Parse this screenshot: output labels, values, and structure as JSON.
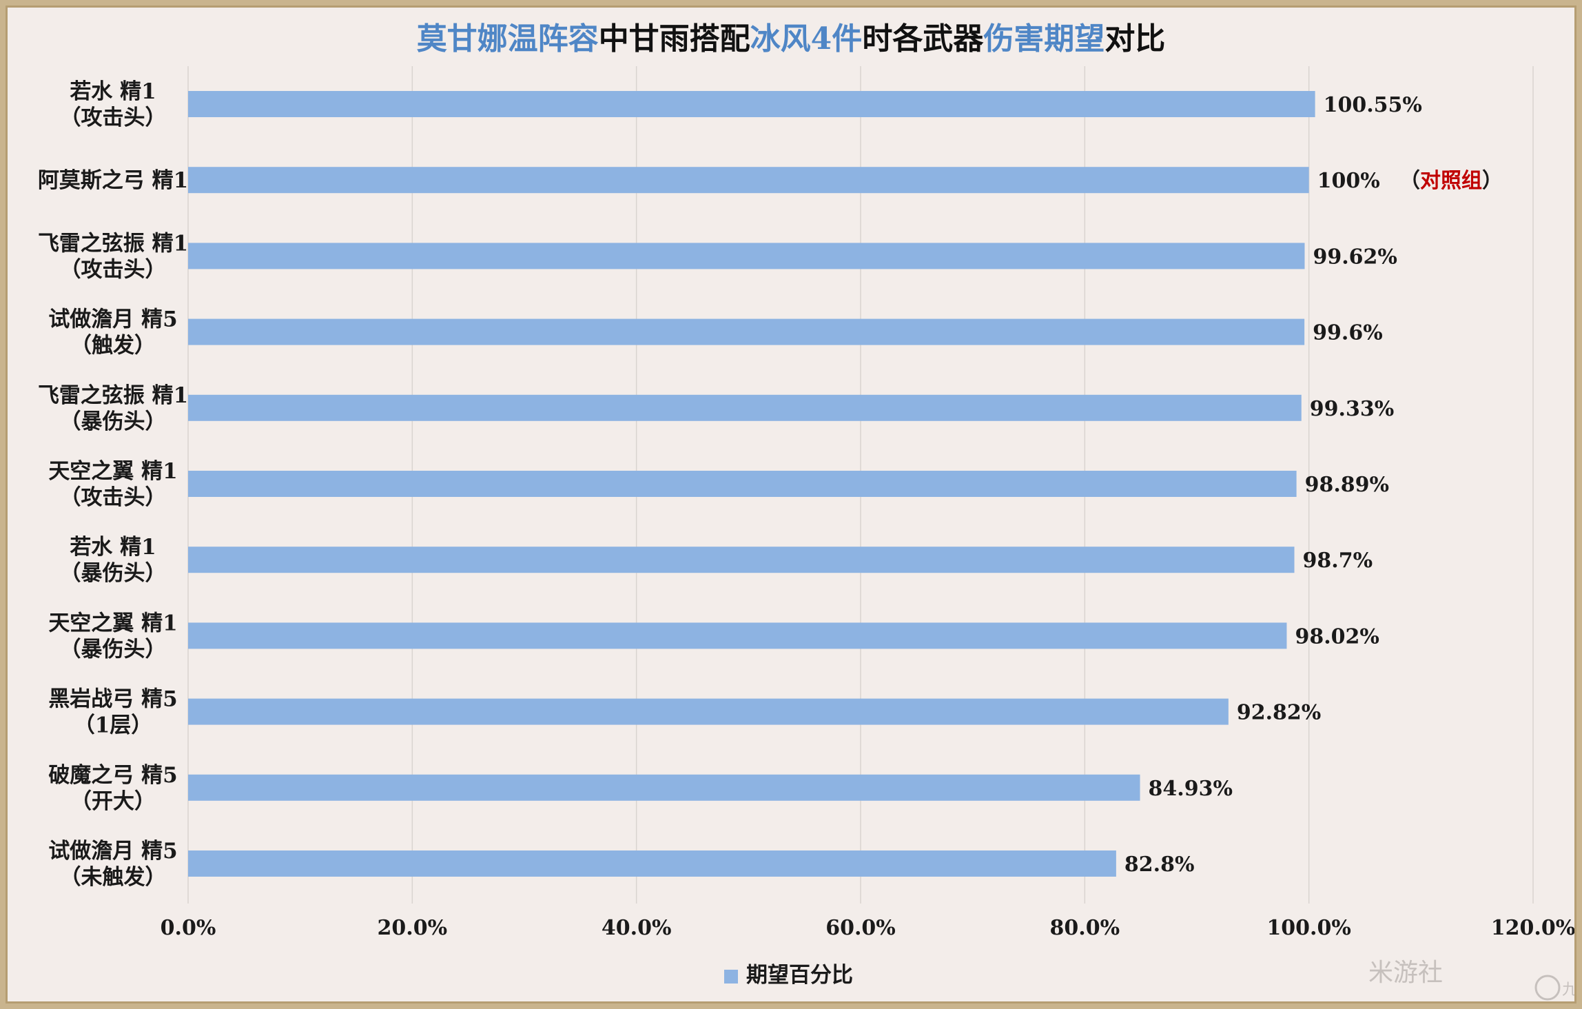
{
  "colors": {
    "bar": "#8db3e2",
    "title_highlight": "#4f86c6",
    "title_dark": "#111111",
    "control_group": "#c00000",
    "grid": "#d9d4d0",
    "frame": "#c9b48e"
  },
  "title_segments": [
    {
      "text": "莫甘娜温阵容",
      "highlight": true
    },
    {
      "text": "中甘雨搭配",
      "highlight": false
    },
    {
      "text": "冰风4件",
      "highlight": true
    },
    {
      "text": "时各武器",
      "highlight": false
    },
    {
      "text": "伤害期望",
      "highlight": true
    },
    {
      "text": "对比",
      "highlight": false
    }
  ],
  "chart_data": {
    "type": "bar",
    "orientation": "horizontal",
    "title": "莫甘娜温阵容中甘雨搭配冰风4件时各武器伤害期望对比",
    "categories": [
      [
        "若水 精1",
        "（攻击头）"
      ],
      [
        "阿莫斯之弓 精1"
      ],
      [
        "飞雷之弦振 精1",
        "（攻击头）"
      ],
      [
        "试做澹月 精5",
        "（触发）"
      ],
      [
        "飞雷之弦振 精1",
        "（暴伤头）"
      ],
      [
        "天空之翼 精1",
        "（攻击头）"
      ],
      [
        "若水 精1",
        "（暴伤头）"
      ],
      [
        "天空之翼 精1",
        "（暴伤头）"
      ],
      [
        "黑岩战弓 精5",
        "（1层）"
      ],
      [
        "破魔之弓 精5",
        "（开大）"
      ],
      [
        "试做澹月 精5",
        "（未触发）"
      ]
    ],
    "series": [
      {
        "name": "期望百分比",
        "values": [
          100.55,
          100,
          99.62,
          99.6,
          99.33,
          98.89,
          98.7,
          98.02,
          92.82,
          84.93,
          82.8
        ],
        "labels": [
          "100.55%",
          "100%",
          "99.62%",
          "99.6%",
          "99.33%",
          "98.89%",
          "98.7%",
          "98.02%",
          "92.82%",
          "84.93%",
          "82.8%"
        ]
      }
    ],
    "annotation": {
      "category_index": 1,
      "prefix": "（",
      "text": "对照组",
      "suffix": "）"
    },
    "xlim": [
      0,
      120
    ],
    "xticks": [
      0,
      20,
      40,
      60,
      80,
      100,
      120
    ],
    "xtick_labels": [
      "0.0%",
      "20.0%",
      "40.0%",
      "60.0%",
      "80.0%",
      "100.0%",
      "120.0%"
    ],
    "grid": "vertical",
    "legend_position": "bottom"
  },
  "watermark": {
    "text": "米游社",
    "logo": "九游"
  }
}
